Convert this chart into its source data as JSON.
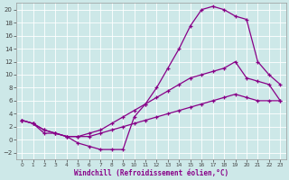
{
  "xlabel": "Windchill (Refroidissement éolien,°C)",
  "bg_color": "#cde8e8",
  "grid_color": "#b0d0d0",
  "line_color": "#880088",
  "xlim": [
    -0.5,
    23.5
  ],
  "ylim": [
    -3,
    21
  ],
  "xticks": [
    0,
    1,
    2,
    3,
    4,
    5,
    6,
    7,
    8,
    9,
    10,
    11,
    12,
    13,
    14,
    15,
    16,
    17,
    18,
    19,
    20,
    21,
    22,
    23
  ],
  "yticks": [
    -2,
    0,
    2,
    4,
    6,
    8,
    10,
    12,
    14,
    16,
    18,
    20
  ],
  "curve1_x": [
    0,
    1,
    2,
    3,
    4,
    5,
    6,
    7,
    8,
    9,
    10,
    11,
    12,
    13,
    14,
    15,
    16,
    17,
    18,
    19,
    20,
    21,
    22,
    23
  ],
  "curve1_y": [
    3.0,
    2.5,
    1.0,
    1.0,
    0.5,
    -0.5,
    -1.0,
    -1.5,
    -1.5,
    -1.5,
    3.5,
    5.5,
    8.0,
    11.0,
    14.0,
    17.5,
    20.0,
    20.5,
    20.0,
    19.0,
    18.5,
    12.0,
    10.0,
    8.5
  ],
  "curve2_x": [
    0,
    1,
    2,
    3,
    4,
    5,
    6,
    7,
    8,
    9,
    10,
    11,
    12,
    13,
    14,
    15,
    16,
    17,
    18,
    19,
    20,
    21,
    22,
    23
  ],
  "curve2_y": [
    3.0,
    2.5,
    1.5,
    1.0,
    0.5,
    0.5,
    1.0,
    1.5,
    2.5,
    3.5,
    4.5,
    5.5,
    6.5,
    7.5,
    8.5,
    9.5,
    10.0,
    10.5,
    11.0,
    12.0,
    9.5,
    9.0,
    8.5,
    6.0
  ],
  "curve3_x": [
    0,
    1,
    2,
    3,
    4,
    5,
    6,
    7,
    8,
    9,
    10,
    11,
    12,
    13,
    14,
    15,
    16,
    17,
    18,
    19,
    20,
    21,
    22,
    23
  ],
  "curve3_y": [
    3.0,
    2.5,
    1.5,
    1.0,
    0.5,
    0.5,
    0.5,
    1.0,
    1.5,
    2.0,
    2.5,
    3.0,
    3.5,
    4.0,
    4.5,
    5.0,
    5.5,
    6.0,
    6.5,
    7.0,
    6.5,
    6.0,
    6.0,
    6.0
  ]
}
